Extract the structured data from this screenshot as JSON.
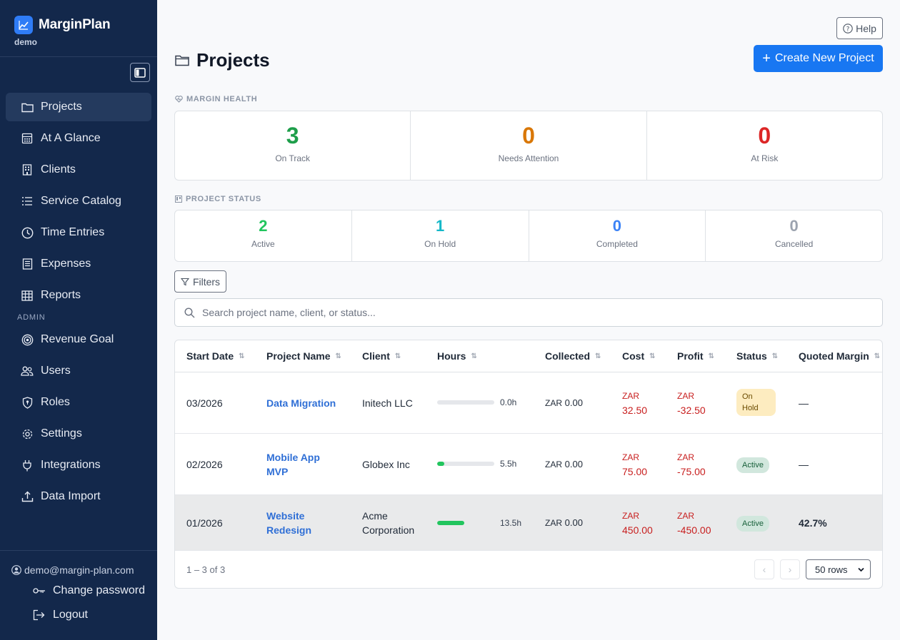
{
  "brand": {
    "name": "MarginPlan",
    "subtitle": "demo"
  },
  "nav": {
    "items": [
      {
        "label": "Projects",
        "icon": "folder-icon",
        "active": true
      },
      {
        "label": "At A Glance",
        "icon": "calculator-icon"
      },
      {
        "label": "Clients",
        "icon": "building-icon"
      },
      {
        "label": "Service Catalog",
        "icon": "list-icon"
      },
      {
        "label": "Time Entries",
        "icon": "clock-icon"
      },
      {
        "label": "Expenses",
        "icon": "receipt-icon"
      },
      {
        "label": "Reports",
        "icon": "table-icon"
      }
    ],
    "admin_label": "ADMIN",
    "admin_items": [
      {
        "label": "Revenue Goal",
        "icon": "target-icon"
      },
      {
        "label": "Users",
        "icon": "users-icon"
      },
      {
        "label": "Roles",
        "icon": "shield-icon"
      },
      {
        "label": "Settings",
        "icon": "gear-icon"
      },
      {
        "label": "Integrations",
        "icon": "plug-icon"
      },
      {
        "label": "Data Import",
        "icon": "upload-icon"
      }
    ]
  },
  "footer": {
    "email": "demo@margin-plan.com",
    "change_password": "Change password",
    "logout": "Logout"
  },
  "header": {
    "help": "Help",
    "title": "Projects",
    "create": "Create New Project"
  },
  "margin_health": {
    "label": "MARGIN HEALTH",
    "stats": [
      {
        "value": "3",
        "label": "On Track",
        "color": "#1e9e4a"
      },
      {
        "value": "0",
        "label": "Needs Attention",
        "color": "#d97706"
      },
      {
        "value": "0",
        "label": "At Risk",
        "color": "#dc2626"
      }
    ]
  },
  "project_status": {
    "label": "PROJECT STATUS",
    "stats": [
      {
        "value": "2",
        "label": "Active",
        "color": "#22c55e"
      },
      {
        "value": "1",
        "label": "On Hold",
        "color": "#14b8c8"
      },
      {
        "value": "0",
        "label": "Completed",
        "color": "#3b82f6"
      },
      {
        "value": "0",
        "label": "Cancelled",
        "color": "#9ca3af"
      }
    ]
  },
  "filters": {
    "label": "Filters"
  },
  "search": {
    "placeholder": "Search project name, client, or status..."
  },
  "table": {
    "columns": [
      "Start Date",
      "Project Name",
      "Client",
      "Hours",
      "Collected",
      "Cost",
      "Profit",
      "Status",
      "Quoted Margin"
    ],
    "rows": [
      {
        "start": "03/2026",
        "name_l1": "Data Migration",
        "name_l2": "",
        "client_l1": "Initech LLC",
        "client_l2": "",
        "hours": "0.0h",
        "hours_fraction": 0,
        "collected_cur": "ZAR",
        "collected_val": "0.00",
        "cost_cur": "ZAR",
        "cost_val": "32.50",
        "profit_cur": "ZAR",
        "profit_val": "-32.50",
        "status_l1": "On",
        "status_l2": "Hold",
        "margin": "—"
      },
      {
        "start": "02/2026",
        "name_l1": "Mobile App",
        "name_l2": "MVP",
        "client_l1": "Globex Inc",
        "client_l2": "",
        "hours": "5.5h",
        "hours_fraction": 0.12,
        "collected_cur": "ZAR",
        "collected_val": "0.00",
        "cost_cur": "ZAR",
        "cost_val": "75.00",
        "profit_cur": "ZAR",
        "profit_val": "-75.00",
        "status": "Active",
        "margin": "—"
      },
      {
        "start": "01/2026",
        "name_l1": "Website",
        "name_l2": "Redesign",
        "client_l1": "Acme",
        "client_l2": "Corporation",
        "hours": "13.5h",
        "hours_fraction": 0.48,
        "collected_cur": "ZAR",
        "collected_val": "0.00",
        "cost_cur": "ZAR",
        "cost_val": "450.00",
        "profit_cur": "ZAR",
        "profit_val": "-450.00",
        "status": "Active",
        "margin": "42.7%"
      }
    ],
    "range": "1 – 3 of 3",
    "rows_per_page": "50 rows"
  }
}
